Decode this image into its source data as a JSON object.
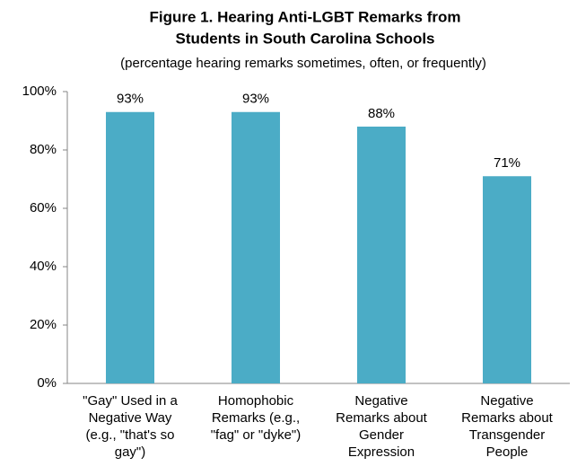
{
  "chart_data": {
    "type": "bar",
    "title": [
      "Figure 1. Hearing Anti-LGBT Remarks from",
      "Students in South Carolina Schools"
    ],
    "subtitle": "(percentage hearing remarks sometimes, often, or frequently)",
    "categories": [
      [
        "\"Gay\" Used in a",
        "Negative Way",
        "(e.g., \"that's so",
        "gay\")"
      ],
      [
        "Homophobic",
        "Remarks (e.g.,",
        "\"fag\" or \"dyke\")"
      ],
      [
        "Negative",
        "Remarks about",
        "Gender",
        "Expression"
      ],
      [
        "Negative",
        "Remarks about",
        "Transgender",
        "People"
      ]
    ],
    "values": [
      93,
      93,
      88,
      71
    ],
    "value_labels": [
      "93%",
      "93%",
      "88%",
      "71%"
    ],
    "color": "#4bacc6",
    "ylim": [
      0,
      100
    ],
    "yticks": [
      {
        "value": 0,
        "label": "0%"
      },
      {
        "value": 20,
        "label": "20%"
      },
      {
        "value": 40,
        "label": "40%"
      },
      {
        "value": 60,
        "label": "60%"
      },
      {
        "value": 80,
        "label": "80%"
      },
      {
        "value": 100,
        "label": "100%"
      }
    ],
    "grid": false
  }
}
